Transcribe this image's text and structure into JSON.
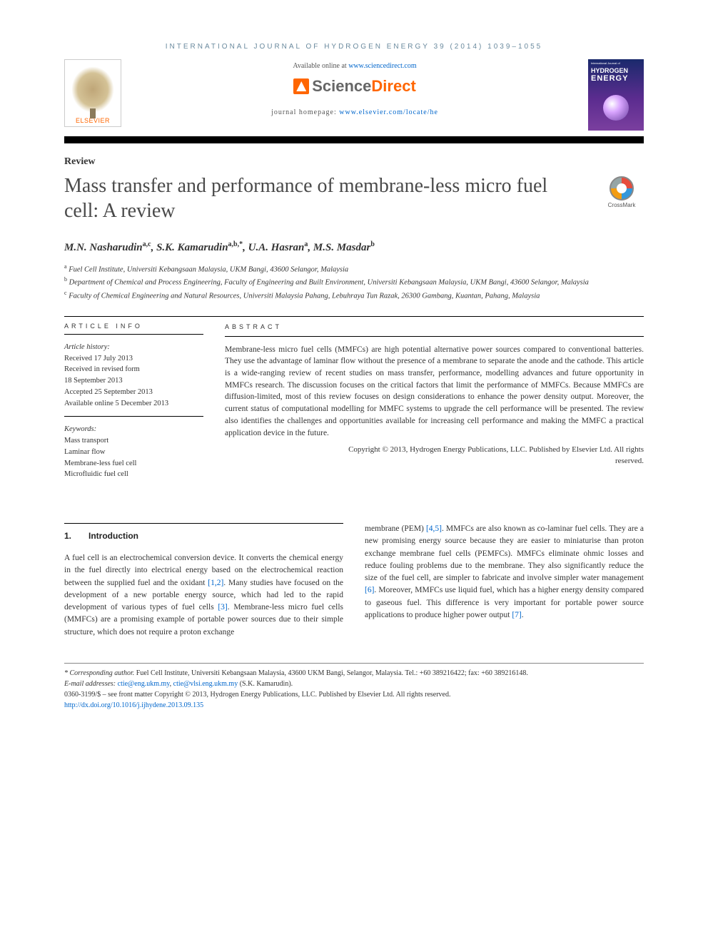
{
  "journal_header": "INTERNATIONAL JOURNAL OF HYDROGEN ENERGY 39 (2014) 1039–1055",
  "banner": {
    "elsevier_label": "ELSEVIER",
    "available_prefix": "Available online at ",
    "available_link": "www.sciencedirect.com",
    "sd_logo_text_1": "Science",
    "sd_logo_text_2": "Direct",
    "homepage_prefix": "journal homepage: ",
    "homepage_link": "www.elsevier.com/locate/he",
    "cover": {
      "top_text": "International Journal of",
      "hydrogen": "HYDROGEN",
      "energy": "ENERGY"
    }
  },
  "crossmark_label": "CrossMark",
  "article_type": "Review",
  "title": "Mass transfer and performance of membrane-less micro fuel cell: A review",
  "authors_html": "M.N. Nasharudin",
  "authors": [
    {
      "name": "M.N. Nasharudin",
      "sup": "a,c"
    },
    {
      "name": "S.K. Kamarudin",
      "sup": "a,b,*"
    },
    {
      "name": "U.A. Hasran",
      "sup": "a"
    },
    {
      "name": "M.S. Masdar",
      "sup": "b"
    }
  ],
  "affiliations": [
    {
      "sup": "a",
      "text": "Fuel Cell Institute, Universiti Kebangsaan Malaysia, UKM Bangi, 43600 Selangor, Malaysia"
    },
    {
      "sup": "b",
      "text": "Department of Chemical and Process Engineering, Faculty of Engineering and Built Environment, Universiti Kebangsaan Malaysia, UKM Bangi, 43600 Selangor, Malaysia"
    },
    {
      "sup": "c",
      "text": "Faculty of Chemical Engineering and Natural Resources, Universiti Malaysia Pahang, Lebuhraya Tun Razak, 26300 Gambang, Kuantan, Pahang, Malaysia"
    }
  ],
  "info": {
    "header": "ARTICLE INFO",
    "history_label": "Article history:",
    "received": "Received 17 July 2013",
    "revised_l1": "Received in revised form",
    "revised_l2": "18 September 2013",
    "accepted": "Accepted 25 September 2013",
    "online": "Available online 5 December 2013",
    "keywords_label": "Keywords:",
    "keywords": [
      "Mass transport",
      "Laminar flow",
      "Membrane-less fuel cell",
      "Microfluidic fuel cell"
    ]
  },
  "abstract": {
    "header": "ABSTRACT",
    "body": "Membrane-less micro fuel cells (MMFCs) are high potential alternative power sources compared to conventional batteries. They use the advantage of laminar flow without the presence of a membrane to separate the anode and the cathode. This article is a wide-ranging review of recent studies on mass transfer, performance, modelling advances and future opportunity in MMFCs research. The discussion focuses on the critical factors that limit the performance of MMFCs. Because MMFCs are diffusion-limited, most of this review focuses on design considerations to enhance the power density output. Moreover, the current status of computational modelling for MMFC systems to upgrade the cell performance will be presented. The review also identifies the challenges and opportunities available for increasing cell performance and making the MMFC a practical application device in the future.",
    "copyright_l1": "Copyright © 2013, Hydrogen Energy Publications, LLC. Published by Elsevier Ltd. All rights",
    "copyright_l2": "reserved."
  },
  "intro": {
    "num": "1.",
    "heading": "Introduction",
    "col1_pre": "A fuel cell is an electrochemical conversion device. It converts the chemical energy in the fuel directly into electrical energy based on the electrochemical reaction between the supplied fuel and the oxidant ",
    "ref1": "[1,2]",
    "col1_mid": ". Many studies have focused on the development of a new portable energy source, which had led to the rapid development of various types of fuel cells ",
    "ref2": "[3]",
    "col1_post": ". Membrane-less micro fuel cells (MMFCs) are a promising example of portable power sources due to their simple structure, which does not require a proton exchange",
    "col2_pre": "membrane (PEM) ",
    "ref3": "[4,5]",
    "col2_mid": ". MMFCs are also known as co-laminar fuel cells. They are a new promising energy source because they are easier to miniaturise than proton exchange membrane fuel cells (PEMFCs). MMFCs eliminate ohmic losses and reduce fouling problems due to the membrane. They also significantly reduce the size of the fuel cell, are simpler to fabricate and involve simpler water management ",
    "ref4": "[6]",
    "col2_mid2": ". Moreover, MMFCs use liquid fuel, which has a higher energy density compared to gaseous fuel. This difference is very important for portable power source applications to produce higher power output ",
    "ref5": "[7]",
    "col2_post": "."
  },
  "footnotes": {
    "corr_label": "* Corresponding author.",
    "corr_text": " Fuel Cell Institute, Universiti Kebangsaan Malaysia, 43600 UKM Bangi, Selangor, Malaysia. Tel.: +60 389216422; fax: +60 389216148.",
    "email_label": "E-mail addresses: ",
    "email1": "ctie@eng.ukm.my",
    "email_sep": ", ",
    "email2": "ctie@vlsi.eng.ukm.my",
    "email_who": " (S.K. Kamarudin).",
    "issn_line": "0360-3199/$ – see front matter Copyright © 2013, Hydrogen Energy Publications, LLC. Published by Elsevier Ltd. All rights reserved.",
    "doi": "http://dx.doi.org/10.1016/j.ijhydene.2013.09.135"
  },
  "colors": {
    "link": "#0066cc",
    "elsevier_orange": "#ff6600",
    "header_grayblue": "#6a8a9e",
    "text": "#333333",
    "cover_gradient_top": "#1a2a6c",
    "cover_gradient_bottom": "#7b3f9f"
  },
  "typography": {
    "title_fontsize": 28,
    "body_fontsize": 11.5,
    "footnote_fontsize": 10,
    "author_fontsize": 15
  }
}
